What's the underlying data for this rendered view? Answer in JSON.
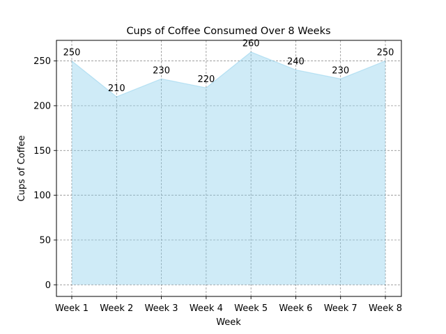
{
  "chart_data": {
    "type": "area",
    "title": "Cups of Coffee Consumed Over 8 Weeks",
    "xlabel": "Week",
    "ylabel": "Cups of Coffee",
    "categories": [
      "Week 1",
      "Week 2",
      "Week 3",
      "Week 4",
      "Week 5",
      "Week 6",
      "Week 7",
      "Week 8"
    ],
    "values": [
      250,
      210,
      230,
      220,
      260,
      240,
      230,
      250
    ],
    "data_labels": [
      "250",
      "210",
      "230",
      "220",
      "260",
      "240",
      "230",
      "250"
    ],
    "ylim": [
      -13,
      273
    ],
    "yticks": [
      0,
      50,
      100,
      150,
      200,
      250
    ],
    "ytick_labels": [
      "0",
      "50",
      "100",
      "150",
      "200",
      "250"
    ],
    "grid": true,
    "colors": {
      "fill": "#87CEEB",
      "line": "#87CEEB",
      "grid": "#7f7f7f"
    }
  }
}
